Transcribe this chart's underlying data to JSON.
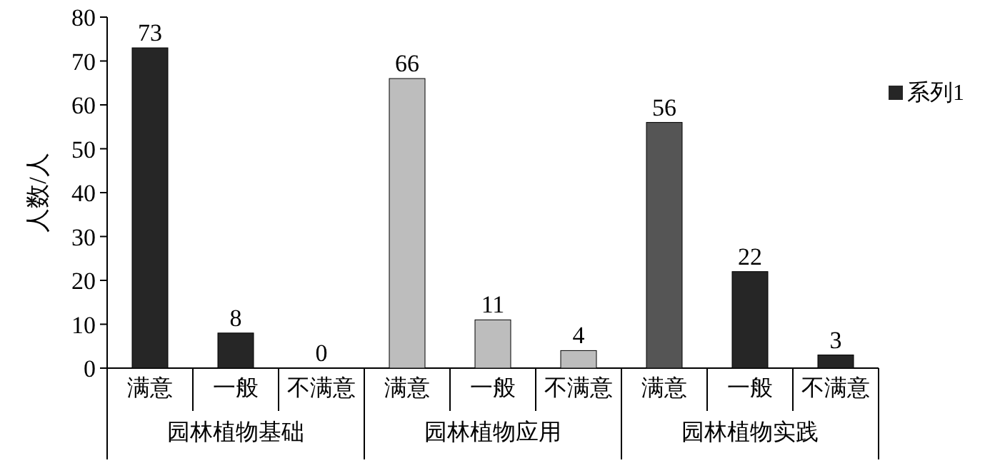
{
  "chart_data": {
    "type": "bar",
    "ylabel": "人数/人",
    "categories": [
      "满意",
      "一般",
      "不满意",
      "满意",
      "一般",
      "不满意",
      "满意",
      "一般",
      "不满意"
    ],
    "annotations": [
      "园林植物基础",
      "园林植物应用",
      "园林植物实践"
    ],
    "series": [
      {
        "name": "系列1",
        "color": "#262626",
        "values": [
          73,
          8,
          0,
          66,
          11,
          4,
          56,
          22,
          3
        ],
        "colors": [
          "#262626",
          "#262626",
          "#262626",
          "#bdbdbd",
          "#bdbdbd",
          "#bdbdbd",
          "#555555",
          "#262626",
          "#262626"
        ]
      }
    ],
    "ylim": [
      0,
      80
    ],
    "yticks": [
      0,
      10,
      20,
      30,
      40,
      50,
      60,
      70,
      80
    ],
    "data_labels": true,
    "legend": "right"
  }
}
